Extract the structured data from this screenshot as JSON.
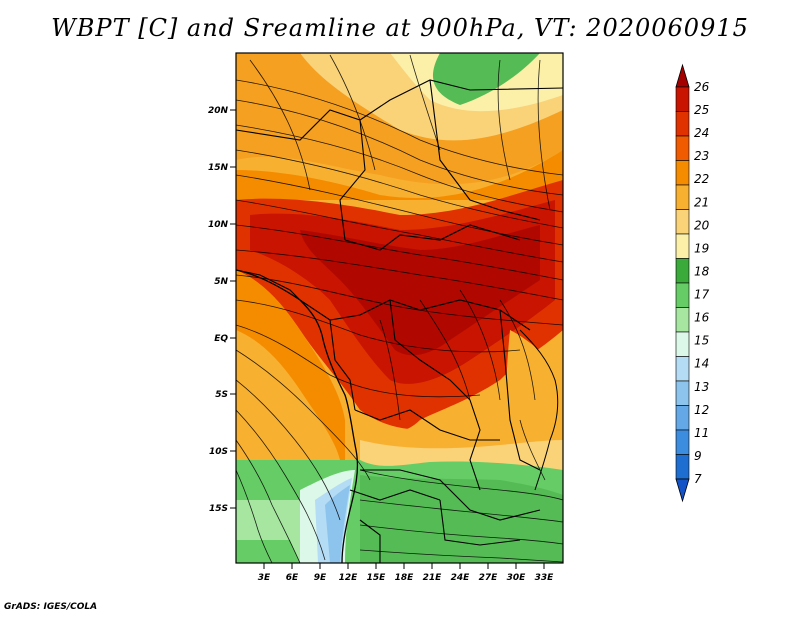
{
  "title": "WBPT [C] and Sreamline at 900hPa, VT: 2020060915",
  "credit": "GrADS: IGES/COLA",
  "map": {
    "lat_labels": [
      "20N",
      "15N",
      "10N",
      "5N",
      "EQ",
      "5S",
      "10S",
      "15S"
    ],
    "lon_labels": [
      "3E",
      "6E",
      "9E",
      "12E",
      "15E",
      "18E",
      "21E",
      "24E",
      "27E",
      "30E",
      "33E"
    ],
    "lon_range": [
      0,
      35
    ],
    "lat_range": [
      -19.5,
      24.5
    ]
  },
  "colorbar": {
    "labels": [
      "26",
      "25",
      "24",
      "23",
      "22",
      "21",
      "20",
      "19",
      "18",
      "17",
      "16",
      "15",
      "14",
      "13",
      "12",
      "11",
      "9",
      "7"
    ],
    "colors": [
      "#a50000",
      "#c81400",
      "#e03200",
      "#f05a00",
      "#f58c00",
      "#f8b030",
      "#fad278",
      "#fcefa8",
      "#3aaa3a",
      "#66cc66",
      "#a6e6a0",
      "#dcf8e8",
      "#b4dcf4",
      "#8cc4ee",
      "#64a8e8",
      "#3c8ce0",
      "#1e6ed2",
      "#1452c8"
    ],
    "top_arrow_color": "#a50000",
    "bottom_arrow_color": "#1452c8"
  }
}
